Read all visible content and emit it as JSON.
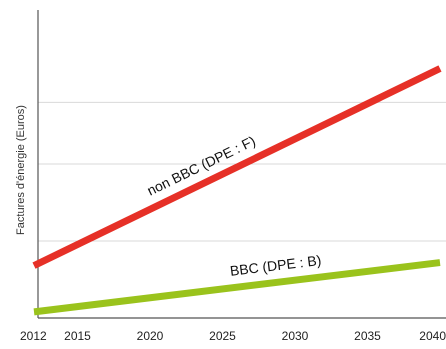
{
  "chart_data": {
    "type": "line",
    "title": "",
    "xlabel": "",
    "ylabel": "Factures d'énergie (Euros)",
    "x_ticks": [
      "2012",
      "2015",
      "2020",
      "2025",
      "2030",
      "2035",
      "2040"
    ],
    "xlim": [
      2012,
      2040
    ],
    "ylim": [
      0,
      100
    ],
    "grid": "horizontal",
    "series": [
      {
        "name": "non BBC (DPE : F)",
        "color": "#e63027",
        "x": [
          2012,
          2040
        ],
        "y": [
          17,
          81
        ]
      },
      {
        "name": "BBC (DPE : B)",
        "color": "#9ac31c",
        "x": [
          2012,
          2040
        ],
        "y": [
          2,
          18
        ]
      }
    ]
  }
}
